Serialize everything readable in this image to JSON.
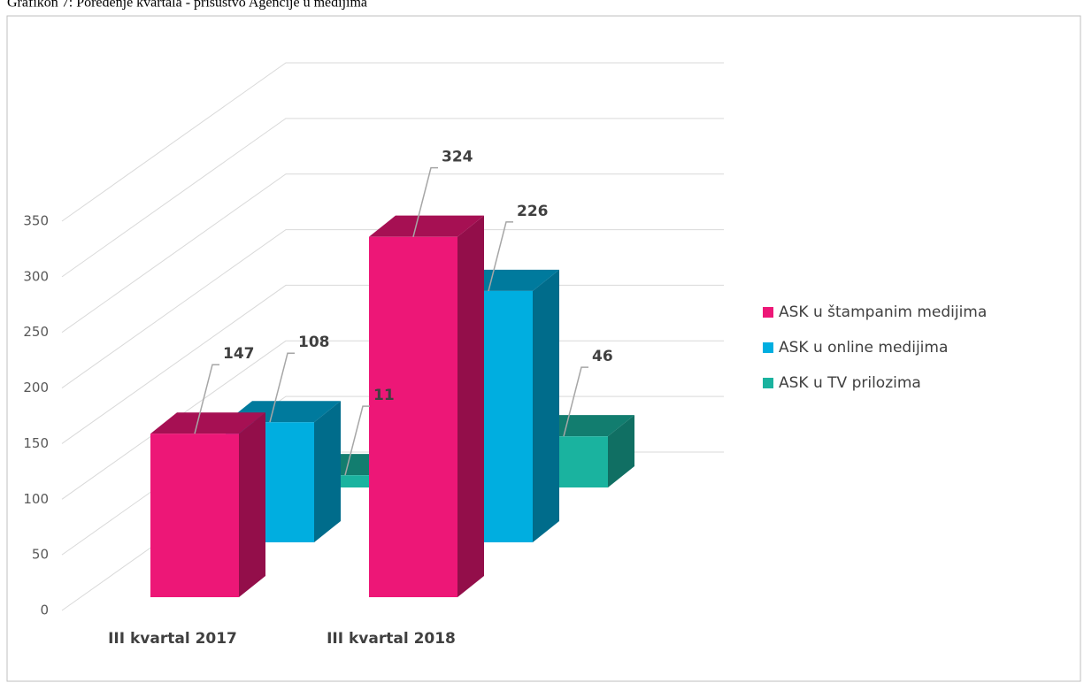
{
  "chart_data": {
    "type": "bar3d",
    "title": "Grafikon 7: Poređenje kvartala - prisustvo Agencije u medijima",
    "categories": [
      "III kvartal 2017",
      "III kvartal 2018"
    ],
    "series": [
      {
        "name": "ASK u štampanim medijima",
        "color": "#ed1777",
        "values": [
          147,
          324
        ]
      },
      {
        "name": "ASK u online medijima",
        "color": "#00aee0",
        "values": [
          108,
          226
        ]
      },
      {
        "name": "ASK u TV prilozima",
        "color": "#1ab39f",
        "values": [
          11,
          46
        ]
      }
    ],
    "ylim": [
      0,
      350
    ],
    "yticks": [
      0,
      50,
      100,
      150,
      200,
      250,
      300,
      350
    ],
    "grid": true
  }
}
